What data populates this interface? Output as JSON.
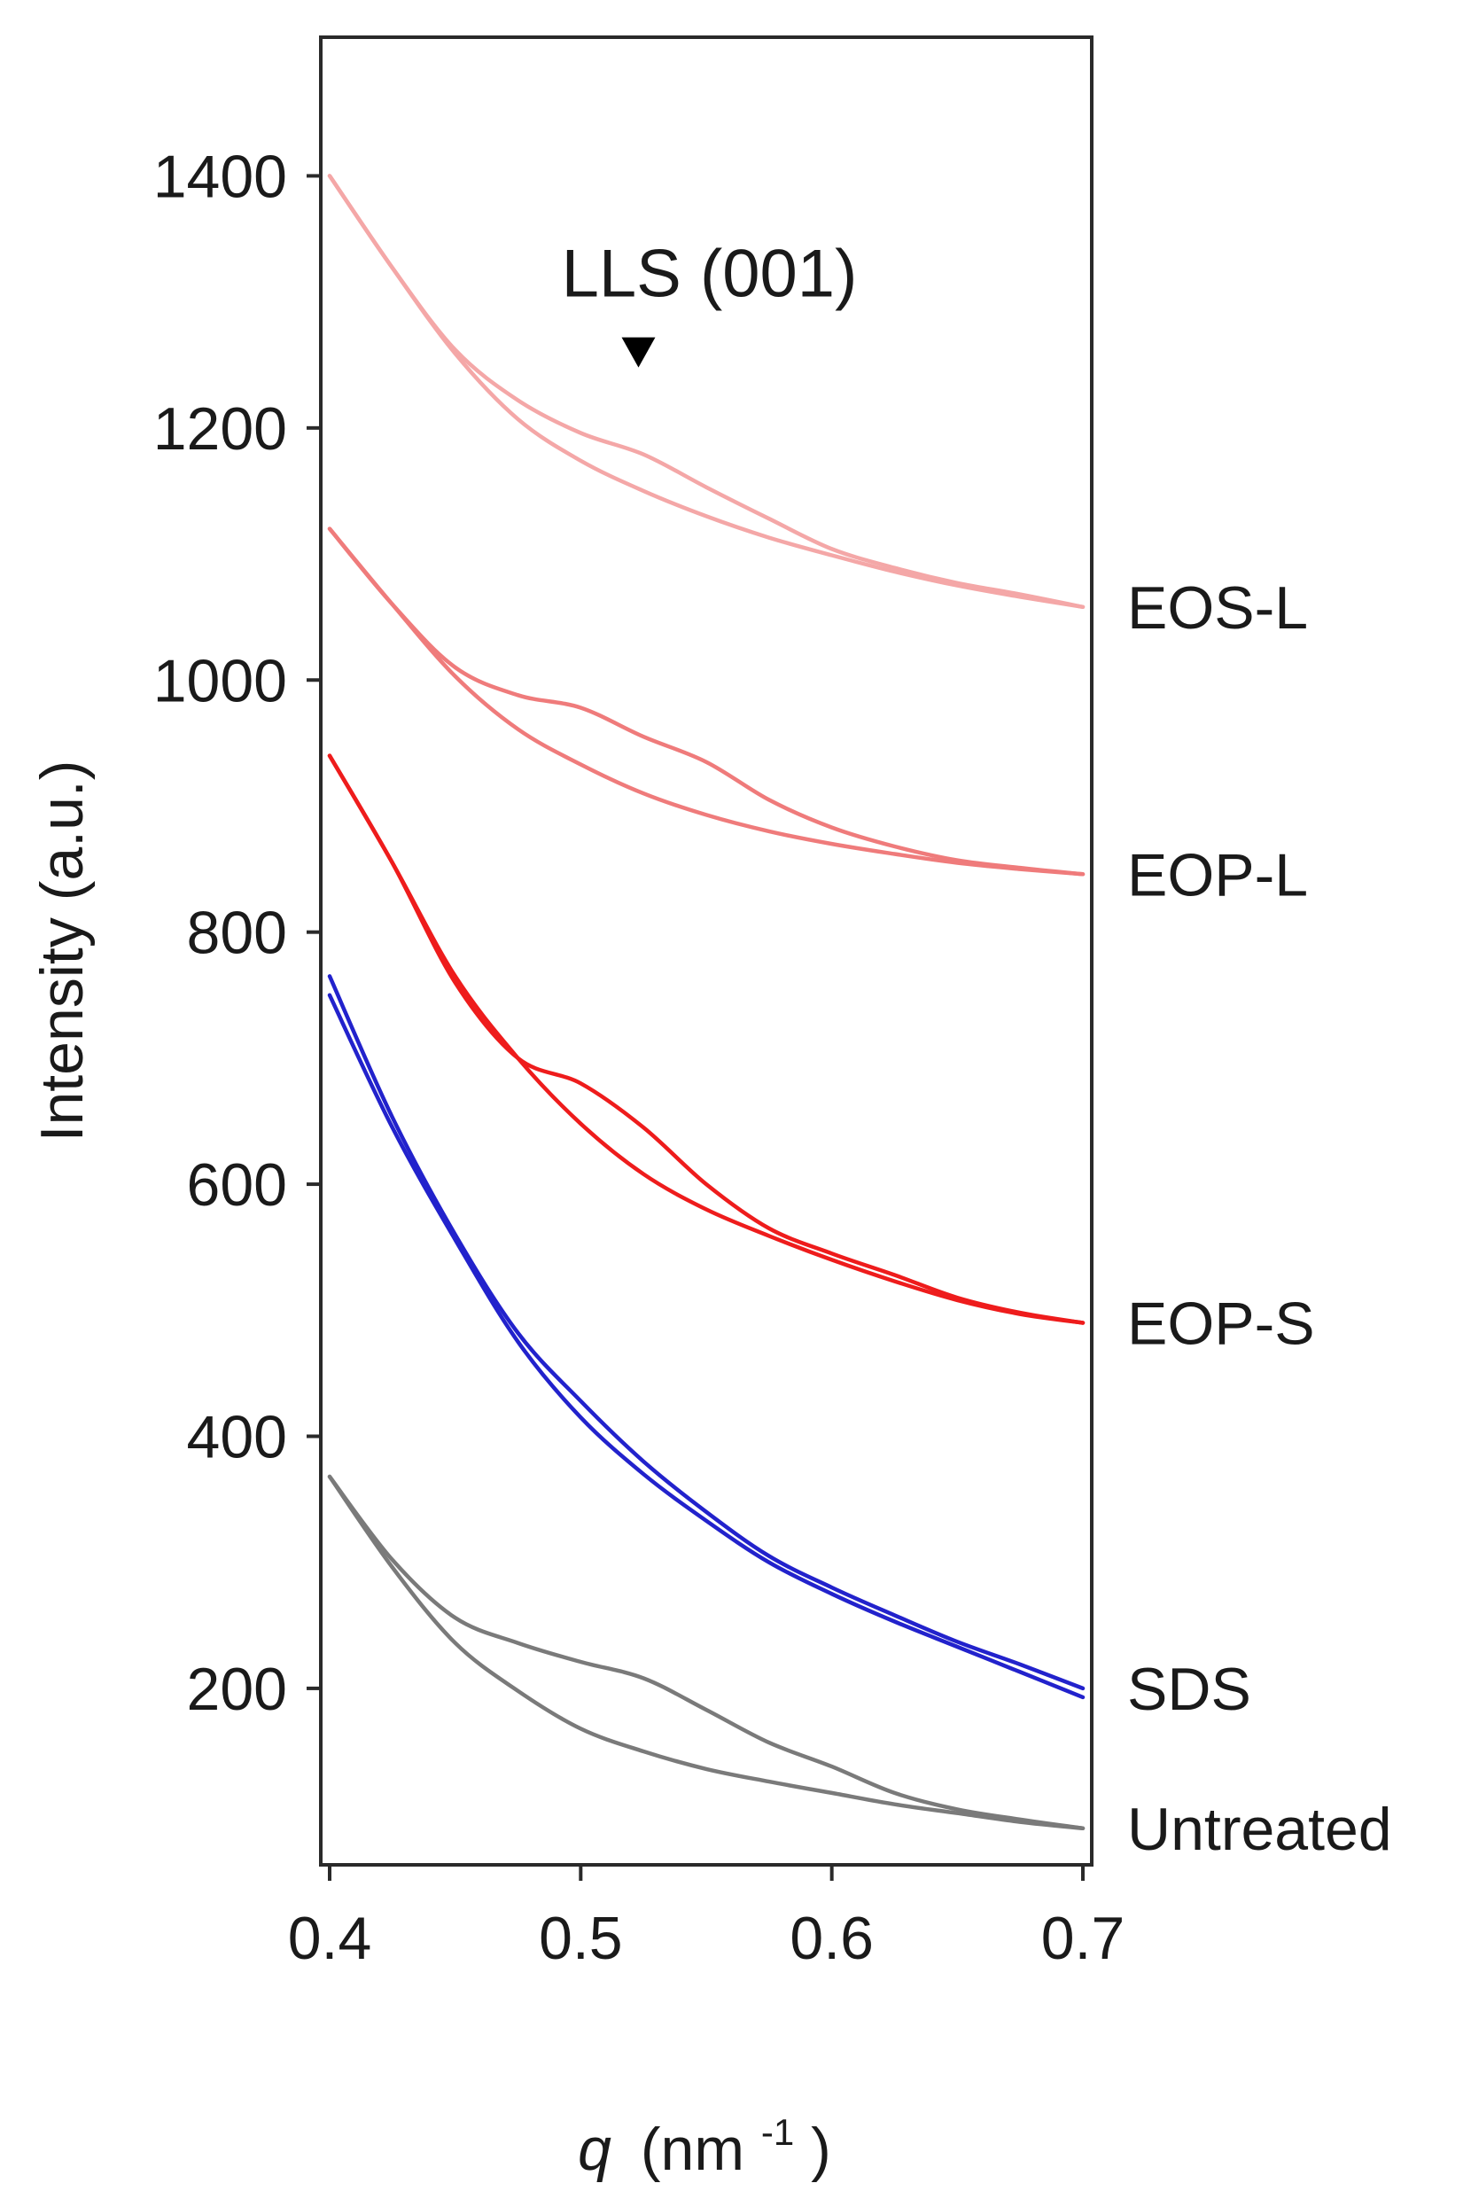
{
  "chart_data": {
    "type": "line",
    "title": "",
    "xlabel": {
      "main": "q",
      "units_prefix": "(nm",
      "units_sup": "-1",
      "units_suffix": ")"
    },
    "ylabel": "Intensity (a.u.)",
    "xlim": [
      0.4,
      0.7
    ],
    "ylim": [
      60,
      1510
    ],
    "x_ticks": [
      "0.4",
      "0.5",
      "0.6",
      "0.7"
    ],
    "y_ticks": [
      "200",
      "400",
      "600",
      "800",
      "1000",
      "1200",
      "1400"
    ],
    "x_tick_values": [
      0.4,
      0.5,
      0.6,
      0.7
    ],
    "y_tick_values": [
      200,
      400,
      600,
      800,
      1000,
      1200,
      1400
    ],
    "annotation": {
      "text": "LLS (001)",
      "marker": "down-triangle-marker",
      "q": 0.523,
      "intensity": 1248
    },
    "groups": [
      {
        "label": "EOS-L",
        "color": "#f4a7a7",
        "series": [
          {
            "name": "EOS-L 1",
            "x": [
              0.4,
              0.425,
              0.45,
              0.475,
              0.5,
              0.525,
              0.55,
              0.575,
              0.6,
              0.625,
              0.65,
              0.675,
              0.7
            ],
            "y": [
              1400,
              1327,
              1262,
              1222,
              1196,
              1179,
              1153,
              1128,
              1104,
              1089,
              1077,
              1068,
              1058
            ]
          },
          {
            "name": "EOS-L 2",
            "x": [
              0.4,
              0.425,
              0.45,
              0.475,
              0.5,
              0.525,
              0.55,
              0.575,
              0.6,
              0.625,
              0.65,
              0.675,
              0.7
            ],
            "y": [
              1400,
              1327,
              1259,
              1207,
              1174,
              1150,
              1130,
              1113,
              1099,
              1086,
              1075,
              1066,
              1058
            ]
          }
        ]
      },
      {
        "label": "EOP-L",
        "color": "#ef7b7b",
        "series": [
          {
            "name": "EOP-L 1",
            "x": [
              0.4,
              0.425,
              0.45,
              0.475,
              0.5,
              0.525,
              0.55,
              0.575,
              0.6,
              0.625,
              0.65,
              0.675,
              0.7
            ],
            "y": [
              1120,
              1060,
              1010,
              988,
              978,
              955,
              935,
              905,
              883,
              868,
              857,
              851,
              846
            ]
          },
          {
            "name": "EOP-L 2",
            "x": [
              0.4,
              0.425,
              0.45,
              0.475,
              0.5,
              0.525,
              0.55,
              0.575,
              0.6,
              0.625,
              0.65,
              0.675,
              0.7
            ],
            "y": [
              1120,
              1060,
              1003,
              961,
              933,
              910,
              893,
              880,
              870,
              862,
              855,
              850,
              846
            ]
          }
        ]
      },
      {
        "label": "EOP-S",
        "color": "#ee1c1c",
        "series": [
          {
            "name": "EOP-S 1",
            "x": [
              0.4,
              0.425,
              0.45,
              0.475,
              0.5,
              0.525,
              0.55,
              0.575,
              0.6,
              0.625,
              0.65,
              0.675,
              0.7
            ],
            "y": [
              940,
              855,
              760,
              700,
              680,
              645,
              600,
              565,
              545,
              528,
              510,
              498,
              490
            ]
          },
          {
            "name": "EOP-S 2",
            "x": [
              0.4,
              0.425,
              0.45,
              0.475,
              0.5,
              0.525,
              0.55,
              0.575,
              0.6,
              0.625,
              0.65,
              0.675,
              0.7
            ],
            "y": [
              940,
              855,
              765,
              700,
              648,
              608,
              580,
              559,
              540,
              523,
              508,
              497,
              490
            ]
          }
        ]
      },
      {
        "label": "SDS",
        "color": "#2222cc",
        "series": [
          {
            "name": "SDS 1",
            "x": [
              0.4,
              0.425,
              0.45,
              0.475,
              0.5,
              0.525,
              0.55,
              0.575,
              0.6,
              0.625,
              0.65,
              0.675,
              0.7
            ],
            "y": [
              765,
              653,
              560,
              482,
              428,
              380,
              340,
              305,
              280,
              258,
              237,
              219,
              200
            ]
          },
          {
            "name": "SDS 2",
            "x": [
              0.4,
              0.425,
              0.45,
              0.475,
              0.5,
              0.525,
              0.55,
              0.575,
              0.6,
              0.625,
              0.65,
              0.675,
              0.7
            ],
            "y": [
              750,
              645,
              556,
              475,
              415,
              370,
              333,
              300,
              275,
              253,
              233,
              213,
              193
            ]
          }
        ]
      },
      {
        "label": "Untreated",
        "color": "#7a7a7a",
        "series": [
          {
            "name": "Untreated 1",
            "x": [
              0.4,
              0.425,
              0.45,
              0.475,
              0.5,
              0.525,
              0.55,
              0.575,
              0.6,
              0.625,
              0.65,
              0.675,
              0.7
            ],
            "y": [
              368,
              302,
              256,
              236,
              221,
              208,
              183,
              157,
              138,
              117,
              104,
              96,
              89
            ]
          },
          {
            "name": "Untreated 2",
            "x": [
              0.4,
              0.425,
              0.45,
              0.475,
              0.5,
              0.525,
              0.55,
              0.575,
              0.6,
              0.625,
              0.65,
              0.675,
              0.7
            ],
            "y": [
              368,
              296,
              236,
              198,
              168,
              150,
              136,
              126,
              117,
              108,
              101,
              94,
              89
            ]
          }
        ]
      }
    ]
  }
}
